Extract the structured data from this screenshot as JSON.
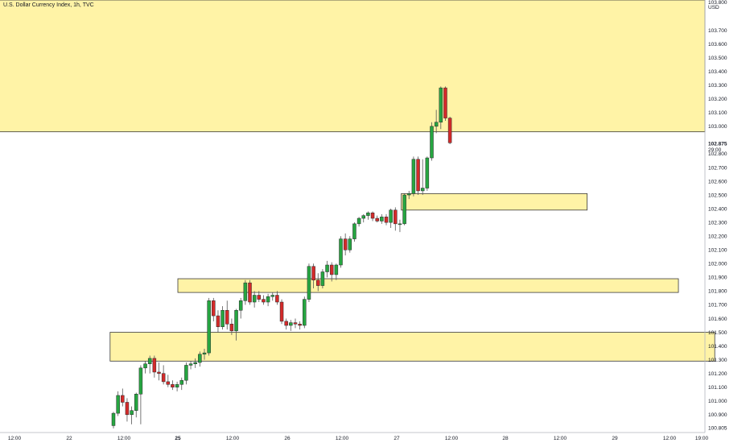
{
  "chart_data": {
    "type": "candlestick",
    "title": "U.S. Dollar Currency Index, 1h, TVC",
    "currency": "USD",
    "ylim": [
      100.78,
      103.92
    ],
    "y_ticks": [
      "103.700",
      "103.600",
      "103.500",
      "103.400",
      "103.300",
      "103.200",
      "103.100",
      "103.000",
      "102.800",
      "102.700",
      "102.600",
      "102.500",
      "102.400",
      "102.300",
      "102.200",
      "102.100",
      "102.000",
      "101.900",
      "101.800",
      "101.700",
      "101.600",
      "101.500",
      "101.400",
      "101.300",
      "101.200",
      "101.100",
      "101.000",
      "100.900",
      "100.805"
    ],
    "top_cut_label": "103.800",
    "last_price_label": "102.875",
    "countdown_label": "29:00",
    "x_ticks": [
      "12:00",
      "22",
      "12:00",
      "25",
      "12:00",
      "26",
      "12:00",
      "27",
      "12:00",
      "28",
      "12:00",
      "29",
      "12:00",
      "19:00"
    ],
    "zones": [
      {
        "name": "supply-zone-top",
        "y_top": 103.92,
        "y_bottom": 102.96,
        "start": "left",
        "end": "right"
      },
      {
        "name": "demand-zone-1",
        "y_top": 102.51,
        "y_bottom": 102.39,
        "start": "27 01:00",
        "end": "28 18:00"
      },
      {
        "name": "demand-zone-2",
        "y_top": 101.89,
        "y_bottom": 101.79,
        "start": "25 00:00",
        "end": "29 14:00"
      },
      {
        "name": "demand-zone-3",
        "y_top": 101.5,
        "y_bottom": 101.29,
        "start": "22 09:00",
        "end": "29 22:00"
      }
    ],
    "colors": {
      "up": "#26a641",
      "down": "#d42a2a",
      "zone_fill": "#fff3a6",
      "zone_border": "#3a3a3a",
      "wick": "#555555"
    },
    "candles": [
      {
        "o": 100.82,
        "h": 100.92,
        "l": 100.8,
        "c": 100.91
      },
      {
        "o": 100.91,
        "h": 101.07,
        "l": 100.89,
        "c": 101.04
      },
      {
        "o": 101.04,
        "h": 101.09,
        "l": 100.96,
        "c": 100.99
      },
      {
        "o": 100.99,
        "h": 101.02,
        "l": 100.85,
        "c": 100.9
      },
      {
        "o": 100.9,
        "h": 100.96,
        "l": 100.83,
        "c": 100.93
      },
      {
        "o": 100.93,
        "h": 101.06,
        "l": 100.88,
        "c": 101.05
      },
      {
        "o": 101.05,
        "h": 101.26,
        "l": 100.83,
        "c": 101.24
      },
      {
        "o": 101.24,
        "h": 101.29,
        "l": 101.2,
        "c": 101.27
      },
      {
        "o": 101.27,
        "h": 101.33,
        "l": 101.2,
        "c": 101.31
      },
      {
        "o": 101.31,
        "h": 101.33,
        "l": 101.17,
        "c": 101.21
      },
      {
        "o": 101.21,
        "h": 101.28,
        "l": 101.15,
        "c": 101.2
      },
      {
        "o": 101.2,
        "h": 101.26,
        "l": 101.12,
        "c": 101.14
      },
      {
        "o": 101.14,
        "h": 101.19,
        "l": 101.1,
        "c": 101.12
      },
      {
        "o": 101.12,
        "h": 101.15,
        "l": 101.08,
        "c": 101.1
      },
      {
        "o": 101.1,
        "h": 101.14,
        "l": 101.07,
        "c": 101.12
      },
      {
        "o": 101.12,
        "h": 101.17,
        "l": 101.08,
        "c": 101.15
      },
      {
        "o": 101.15,
        "h": 101.28,
        "l": 101.12,
        "c": 101.26
      },
      {
        "o": 101.26,
        "h": 101.29,
        "l": 101.23,
        "c": 101.27
      },
      {
        "o": 101.27,
        "h": 101.31,
        "l": 101.24,
        "c": 101.28
      },
      {
        "o": 101.28,
        "h": 101.36,
        "l": 101.25,
        "c": 101.34
      },
      {
        "o": 101.34,
        "h": 101.38,
        "l": 101.3,
        "c": 101.35
      },
      {
        "o": 101.35,
        "h": 101.75,
        "l": 101.33,
        "c": 101.73
      },
      {
        "o": 101.73,
        "h": 101.75,
        "l": 101.58,
        "c": 101.62
      },
      {
        "o": 101.62,
        "h": 101.66,
        "l": 101.5,
        "c": 101.54
      },
      {
        "o": 101.54,
        "h": 101.69,
        "l": 101.52,
        "c": 101.66
      },
      {
        "o": 101.66,
        "h": 101.73,
        "l": 101.52,
        "c": 101.56
      },
      {
        "o": 101.56,
        "h": 101.6,
        "l": 101.48,
        "c": 101.51
      },
      {
        "o": 101.51,
        "h": 101.67,
        "l": 101.44,
        "c": 101.66
      },
      {
        "o": 101.66,
        "h": 101.75,
        "l": 101.6,
        "c": 101.73
      },
      {
        "o": 101.73,
        "h": 101.88,
        "l": 101.7,
        "c": 101.86
      },
      {
        "o": 101.86,
        "h": 101.88,
        "l": 101.7,
        "c": 101.72
      },
      {
        "o": 101.72,
        "h": 101.8,
        "l": 101.68,
        "c": 101.77
      },
      {
        "o": 101.77,
        "h": 101.8,
        "l": 101.72,
        "c": 101.74
      },
      {
        "o": 101.74,
        "h": 101.77,
        "l": 101.7,
        "c": 101.72
      },
      {
        "o": 101.72,
        "h": 101.78,
        "l": 101.69,
        "c": 101.76
      },
      {
        "o": 101.76,
        "h": 101.79,
        "l": 101.73,
        "c": 101.77
      },
      {
        "o": 101.77,
        "h": 101.8,
        "l": 101.7,
        "c": 101.72
      },
      {
        "o": 101.72,
        "h": 101.74,
        "l": 101.56,
        "c": 101.58
      },
      {
        "o": 101.58,
        "h": 101.6,
        "l": 101.52,
        "c": 101.55
      },
      {
        "o": 101.55,
        "h": 101.59,
        "l": 101.51,
        "c": 101.57
      },
      {
        "o": 101.57,
        "h": 101.6,
        "l": 101.53,
        "c": 101.56
      },
      {
        "o": 101.56,
        "h": 101.58,
        "l": 101.52,
        "c": 101.55
      },
      {
        "o": 101.55,
        "h": 101.76,
        "l": 101.53,
        "c": 101.74
      },
      {
        "o": 101.74,
        "h": 102.0,
        "l": 101.72,
        "c": 101.98
      },
      {
        "o": 101.98,
        "h": 102.0,
        "l": 101.82,
        "c": 101.88
      },
      {
        "o": 101.88,
        "h": 101.93,
        "l": 101.8,
        "c": 101.84
      },
      {
        "o": 101.84,
        "h": 101.96,
        "l": 101.82,
        "c": 101.94
      },
      {
        "o": 101.94,
        "h": 102.02,
        "l": 101.9,
        "c": 101.99
      },
      {
        "o": 101.99,
        "h": 102.01,
        "l": 101.87,
        "c": 101.92
      },
      {
        "o": 101.92,
        "h": 102.0,
        "l": 101.88,
        "c": 101.99
      },
      {
        "o": 101.99,
        "h": 102.2,
        "l": 101.97,
        "c": 102.18
      },
      {
        "o": 102.18,
        "h": 102.22,
        "l": 102.06,
        "c": 102.1
      },
      {
        "o": 102.1,
        "h": 102.2,
        "l": 102.08,
        "c": 102.18
      },
      {
        "o": 102.18,
        "h": 102.3,
        "l": 102.16,
        "c": 102.29
      },
      {
        "o": 102.29,
        "h": 102.34,
        "l": 102.27,
        "c": 102.33
      },
      {
        "o": 102.33,
        "h": 102.36,
        "l": 102.3,
        "c": 102.35
      },
      {
        "o": 102.35,
        "h": 102.38,
        "l": 102.32,
        "c": 102.37
      },
      {
        "o": 102.37,
        "h": 102.38,
        "l": 102.31,
        "c": 102.33
      },
      {
        "o": 102.33,
        "h": 102.35,
        "l": 102.3,
        "c": 102.31
      },
      {
        "o": 102.31,
        "h": 102.36,
        "l": 102.29,
        "c": 102.34
      },
      {
        "o": 102.34,
        "h": 102.36,
        "l": 102.28,
        "c": 102.3
      },
      {
        "o": 102.3,
        "h": 102.4,
        "l": 102.26,
        "c": 102.39
      },
      {
        "o": 102.39,
        "h": 102.41,
        "l": 102.24,
        "c": 102.29
      },
      {
        "o": 102.29,
        "h": 102.32,
        "l": 102.23,
        "c": 102.29
      },
      {
        "o": 102.29,
        "h": 102.51,
        "l": 102.28,
        "c": 102.5
      },
      {
        "o": 102.5,
        "h": 102.53,
        "l": 102.47,
        "c": 102.51
      },
      {
        "o": 102.51,
        "h": 102.78,
        "l": 102.49,
        "c": 102.76
      },
      {
        "o": 102.76,
        "h": 102.78,
        "l": 102.5,
        "c": 102.53
      },
      {
        "o": 102.53,
        "h": 102.76,
        "l": 102.5,
        "c": 102.55
      },
      {
        "o": 102.55,
        "h": 102.78,
        "l": 102.53,
        "c": 102.77
      },
      {
        "o": 102.77,
        "h": 103.03,
        "l": 102.75,
        "c": 103.0
      },
      {
        "o": 103.0,
        "h": 103.12,
        "l": 102.95,
        "c": 103.03
      },
      {
        "o": 103.03,
        "h": 103.29,
        "l": 102.98,
        "c": 103.28
      },
      {
        "o": 103.28,
        "h": 103.29,
        "l": 103.04,
        "c": 103.06
      },
      {
        "o": 103.06,
        "h": 103.07,
        "l": 102.87,
        "c": 102.88
      }
    ]
  }
}
